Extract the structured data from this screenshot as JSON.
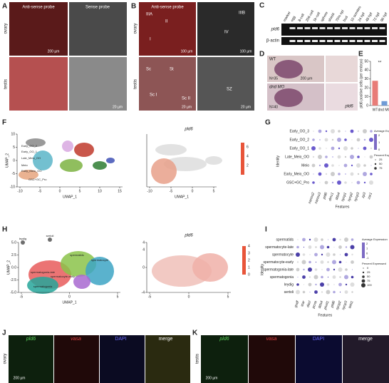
{
  "panel_labels": [
    "A",
    "B",
    "C",
    "D",
    "E",
    "F",
    "G",
    "H",
    "I",
    "J",
    "K"
  ],
  "a": {
    "header": [
      "Anti-sense probe",
      "Sense probe"
    ],
    "tissues": [
      "ovary",
      "testis"
    ],
    "scales": [
      "200 µm",
      "20 µm"
    ]
  },
  "b": {
    "header": "Anti-sense probe",
    "tissues": [
      "ovary",
      "testis"
    ],
    "stages": [
      "IIIA",
      "II",
      "I",
      "IIIB",
      "IV",
      "Sc",
      "St",
      "Sc I",
      "Sc II",
      "SZ"
    ],
    "scales": [
      "100 µm",
      "100 µm",
      "20 µm",
      "20 µm"
    ]
  },
  "c": {
    "lanes": [
      "marker",
      "egg",
      "8-cell",
      "256-cell",
      "1k-cell",
      "sphere",
      "shield",
      "75% epi",
      "bud",
      "10 somites",
      "24 hpf",
      "48 hpf",
      "72 hpf",
      "96 hpf"
    ],
    "genes": [
      "pld6",
      "β-actin"
    ]
  },
  "d": {
    "groups": [
      {
        "name": "WT",
        "n": "N=35"
      },
      {
        "name": "dnd MO",
        "n": "N=40"
      }
    ],
    "scale": "200 µm",
    "gene": "pld6"
  },
  "e": {
    "chart_data": {
      "type": "bar",
      "y_label": "pld6 positive cells (per embryo)",
      "categories": [
        "WT",
        "dnd MO"
      ],
      "values": [
        28,
        5
      ],
      "colors": [
        "#e87c78",
        "#6f9bd6"
      ],
      "ylim": [
        0,
        50
      ],
      "yticks": [
        0,
        10,
        20,
        30,
        40,
        50
      ],
      "significance": "**"
    }
  },
  "f": {
    "umap": {
      "x_label": "UMAP_1",
      "y_label": "UMAP_2",
      "xticks": [
        -10,
        -5,
        0,
        5,
        10,
        15
      ],
      "yticks": [
        -10,
        -5,
        0,
        5,
        10
      ],
      "clusters": [
        "Early_OO_2",
        "Early_OO_1",
        "Late_Meio_OO",
        "Meio",
        "Early_Meio_OO",
        "GSC+GC_Pro"
      ]
    },
    "feature": {
      "title": "pld6",
      "x_label": "UMAP_1",
      "xticks": [
        -10,
        -5,
        0,
        5
      ],
      "legend_ticks": [
        2,
        4,
        6
      ]
    }
  },
  "g": {
    "identities": [
      "Early_OO_3",
      "Early_OO_2",
      "Early_OO_1",
      "Late_Meio_OO",
      "Meio",
      "Early_Meio_OO",
      "GSC+GC_Pro"
    ],
    "features": [
      "nanos2",
      "nanos3",
      "pld6",
      "dmc1",
      "ddx4",
      "sycp1",
      "sycp2",
      "sycp3",
      "zp3",
      "zar1"
    ],
    "y_label": "Identity",
    "x_label": "Features",
    "color_title": "Average Expression",
    "size_title": "Percent Expressed",
    "color_ticks": [
      2,
      1,
      0
    ],
    "size_ticks": [
      25,
      50,
      75
    ]
  },
  "h": {
    "umap": {
      "x_label": "UMAP_1",
      "y_label": "UMAP_2",
      "xticks": [
        -5,
        0,
        5
      ],
      "yticks": [
        {
          "value": 5,
          "label": "5.0"
        },
        {
          "value": 2.5,
          "label": "2.5"
        },
        {
          "value": 0,
          "label": "0.0"
        },
        {
          "value": -2.5,
          "label": "-2.5"
        },
        {
          "value": -5,
          "label": "-5.0"
        }
      ],
      "clusters": [
        "spermatids",
        "spermatocyte",
        "spermatocyte-early",
        "spermatogonia-late",
        "spermatogonia",
        "leydig",
        "sertoli"
      ]
    },
    "feature": {
      "title": "pld6",
      "xticks": [
        -5,
        0,
        5
      ],
      "yticks": [
        4,
        0,
        -4
      ],
      "legend_ticks": [
        0,
        1,
        2,
        3,
        4
      ]
    }
  },
  "i": {
    "identities": [
      "spermatids",
      "spermatocyte-late",
      "spermatocyte",
      "spermatocyte-early",
      "spermatogonia-late",
      "spermatogonia",
      "leydig",
      "sertoli"
    ],
    "features": [
      "gsdf",
      "star",
      "dazl",
      "pcna",
      "ddx4",
      "piwil1",
      "pld6",
      "sycp2",
      "sycp3",
      "tekt1"
    ],
    "y_label": "Identity",
    "x_label": "Features",
    "color_title": "Average Expression",
    "size_title": "Percent Expressed",
    "color_ticks": [
      2,
      1,
      0,
      -1
    ],
    "size_ticks": [
      0,
      25,
      50,
      75,
      100
    ]
  },
  "j": {
    "channels": [
      "pld6",
      "vasa",
      "DAPI",
      "merge"
    ],
    "tissue": "ovary",
    "scale": "200 µm"
  },
  "k": {
    "channels": [
      "pld6",
      "vasa",
      "DAPI",
      "merge"
    ],
    "tissue": "testis",
    "scale": "200 µm"
  }
}
